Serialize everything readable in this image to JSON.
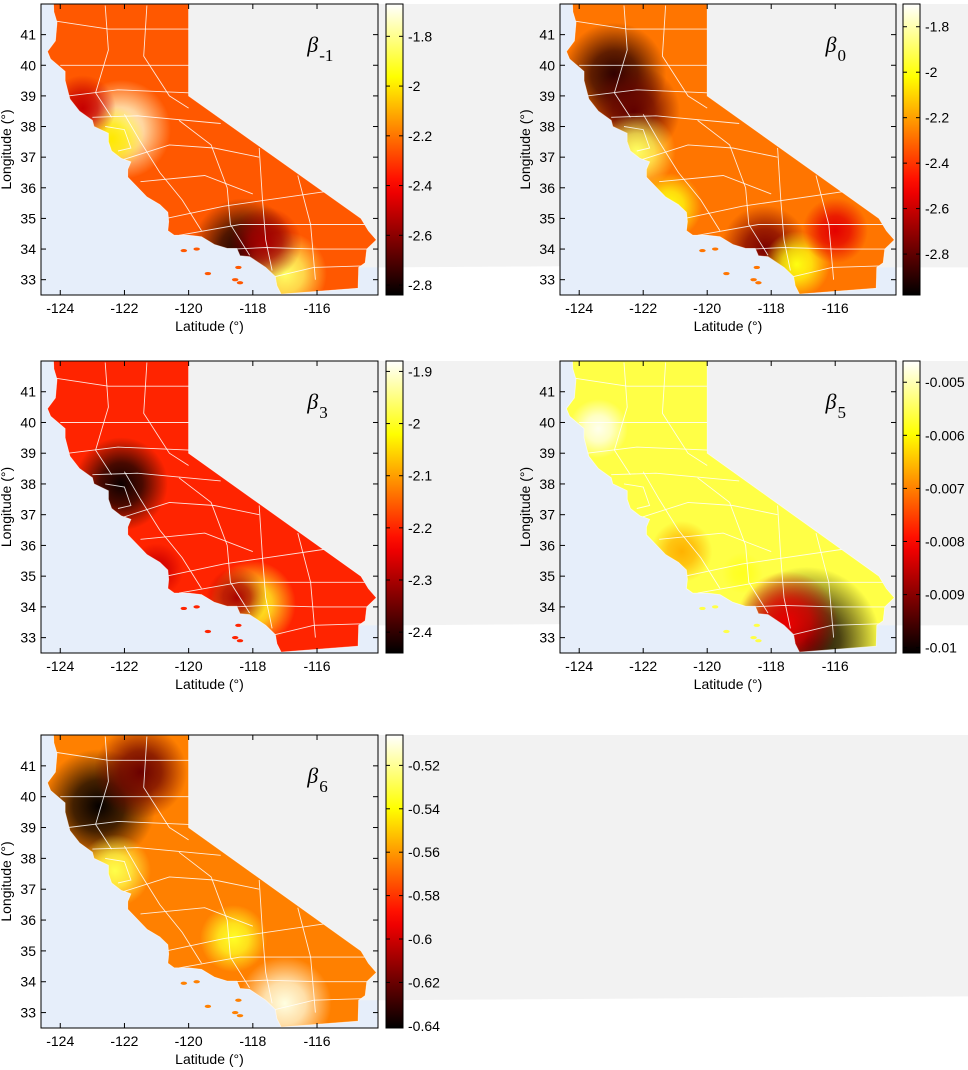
{
  "figure": {
    "colormap": "hot",
    "ocean_color": "#e6eefa",
    "land_outside_color": "#f2f2f2",
    "county_line_color": "#ffffff"
  },
  "chart_data": [
    {
      "type": "heatmap",
      "panel": "beta_-1",
      "annotation": {
        "symbol": "β",
        "subscript": "-1"
      },
      "xlabel": "Latitude (°)",
      "ylabel": "Longitude (°)",
      "xlim": [
        -124.6,
        -114.1
      ],
      "ylim": [
        32.5,
        42.0
      ],
      "xticks": [
        "-124",
        "-122",
        "-120",
        "-118",
        "-116"
      ],
      "yticks": [
        "33",
        "34",
        "35",
        "36",
        "37",
        "38",
        "39",
        "40",
        "41"
      ],
      "colorbar": {
        "range": [
          -2.84,
          -1.67
        ],
        "ticks": [
          "-1.8",
          "-2",
          "-2.2",
          "-2.4",
          "-2.6",
          "-2.8"
        ]
      },
      "base_value": -2.25,
      "features": [
        {
          "lon": -122.1,
          "lat": 37.9,
          "value": -1.72
        },
        {
          "lon": -122.4,
          "lat": 37.6,
          "value": -2.0
        },
        {
          "lon": -118.3,
          "lat": 34.0,
          "value": -2.8
        },
        {
          "lon": -117.0,
          "lat": 33.2,
          "value": -1.85
        },
        {
          "lon": -123.3,
          "lat": 38.6,
          "value": -2.5
        },
        {
          "lon": -117.6,
          "lat": 34.2,
          "value": -2.55
        }
      ]
    },
    {
      "type": "heatmap",
      "panel": "beta_0",
      "annotation": {
        "symbol": "β",
        "subscript": "0"
      },
      "xlabel": "Latitude (°)",
      "ylabel": "Longitude (°)",
      "xlim": [
        -124.6,
        -114.1
      ],
      "ylim": [
        32.5,
        42.0
      ],
      "xticks": [
        "-124",
        "-122",
        "-120",
        "-118",
        "-116"
      ],
      "yticks": [
        "33",
        "34",
        "35",
        "36",
        "37",
        "38",
        "39",
        "40",
        "41"
      ],
      "colorbar": {
        "range": [
          -2.98,
          -1.7
        ],
        "ticks": [
          "-1.8",
          "-2",
          "-2.2",
          "-2.4",
          "-2.6",
          "-2.8"
        ]
      },
      "base_value": -2.28,
      "features": [
        {
          "lon": -122.9,
          "lat": 39.7,
          "value": -2.9
        },
        {
          "lon": -122.3,
          "lat": 38.5,
          "value": -2.8
        },
        {
          "lon": -122.2,
          "lat": 37.2,
          "value": -1.9
        },
        {
          "lon": -121.2,
          "lat": 35.4,
          "value": -2.0
        },
        {
          "lon": -118.2,
          "lat": 34.0,
          "value": -2.75
        },
        {
          "lon": -117.2,
          "lat": 33.5,
          "value": -2.0
        },
        {
          "lon": -116.0,
          "lat": 34.6,
          "value": -2.55
        }
      ]
    },
    {
      "type": "heatmap",
      "panel": "beta_3",
      "annotation": {
        "symbol": "β",
        "subscript": "3"
      },
      "xlabel": "Latitude (°)",
      "ylabel": "Longitude (°)",
      "xlim": [
        -124.6,
        -114.1
      ],
      "ylim": [
        32.5,
        42.0
      ],
      "xticks": [
        "-124",
        "-122",
        "-120",
        "-118",
        "-116"
      ],
      "yticks": [
        "33",
        "34",
        "35",
        "36",
        "37",
        "38",
        "39",
        "40",
        "41"
      ],
      "colorbar": {
        "range": [
          -2.44,
          -1.88
        ],
        "ticks": [
          "-1.9",
          "-2",
          "-2.1",
          "-2.2",
          "-2.3",
          "-2.4"
        ]
      },
      "base_value": -2.2,
      "features": [
        {
          "lon": -122.1,
          "lat": 38.0,
          "value": -2.43
        },
        {
          "lon": -118.0,
          "lat": 34.1,
          "value": -2.0
        },
        {
          "lon": -118.5,
          "lat": 34.3,
          "value": -2.3
        },
        {
          "lon": -121.0,
          "lat": 35.2,
          "value": -2.27
        }
      ]
    },
    {
      "type": "heatmap",
      "panel": "beta_5",
      "annotation": {
        "symbol": "β",
        "subscript": "5"
      },
      "xlabel": "Latitude (°)",
      "ylabel": "Longitude (°)",
      "xlim": [
        -124.6,
        -114.1
      ],
      "ylim": [
        32.5,
        42.0
      ],
      "xticks": [
        "-124",
        "-122",
        "-120",
        "-118",
        "-116"
      ],
      "yticks": [
        "33",
        "34",
        "35",
        "36",
        "37",
        "38",
        "39",
        "40",
        "41"
      ],
      "colorbar": {
        "range": [
          -0.0101,
          -0.0046
        ],
        "ticks": [
          "-0.005",
          "-0.006",
          "-0.007",
          "-0.008",
          "-0.009",
          "-0.01"
        ]
      },
      "base_value": -0.0056,
      "features": [
        {
          "lon": -123.4,
          "lat": 39.8,
          "value": -0.0047
        },
        {
          "lon": -116.9,
          "lat": 32.9,
          "value": -0.01
        },
        {
          "lon": -117.5,
          "lat": 33.5,
          "value": -0.0082
        },
        {
          "lon": -120.8,
          "lat": 35.8,
          "value": -0.0066
        },
        {
          "lon": -118.9,
          "lat": 35.1,
          "value": -0.0058
        }
      ]
    },
    {
      "type": "heatmap",
      "panel": "beta_6",
      "annotation": {
        "symbol": "β",
        "subscript": "6"
      },
      "xlabel": "Latitude (°)",
      "ylabel": "Longitude (°)",
      "xlim": [
        -124.6,
        -114.1
      ],
      "ylim": [
        32.5,
        42.0
      ],
      "xticks": [
        "-124",
        "-122",
        "-120",
        "-118",
        "-116"
      ],
      "yticks": [
        "33",
        "34",
        "35",
        "36",
        "37",
        "38",
        "39",
        "40",
        "41"
      ],
      "colorbar": {
        "range": [
          -0.641,
          -0.506
        ],
        "ticks": [
          "-0.52",
          "-0.54",
          "-0.56",
          "-0.58",
          "-0.6",
          "-0.62",
          "-0.64"
        ]
      },
      "base_value": -0.565,
      "features": [
        {
          "lon": -122.8,
          "lat": 39.7,
          "value": -0.64
        },
        {
          "lon": -121.5,
          "lat": 40.8,
          "value": -0.62
        },
        {
          "lon": -117.0,
          "lat": 33.3,
          "value": -0.51
        },
        {
          "lon": -118.6,
          "lat": 35.4,
          "value": -0.535
        },
        {
          "lon": -122.3,
          "lat": 37.6,
          "value": -0.53
        }
      ]
    }
  ]
}
